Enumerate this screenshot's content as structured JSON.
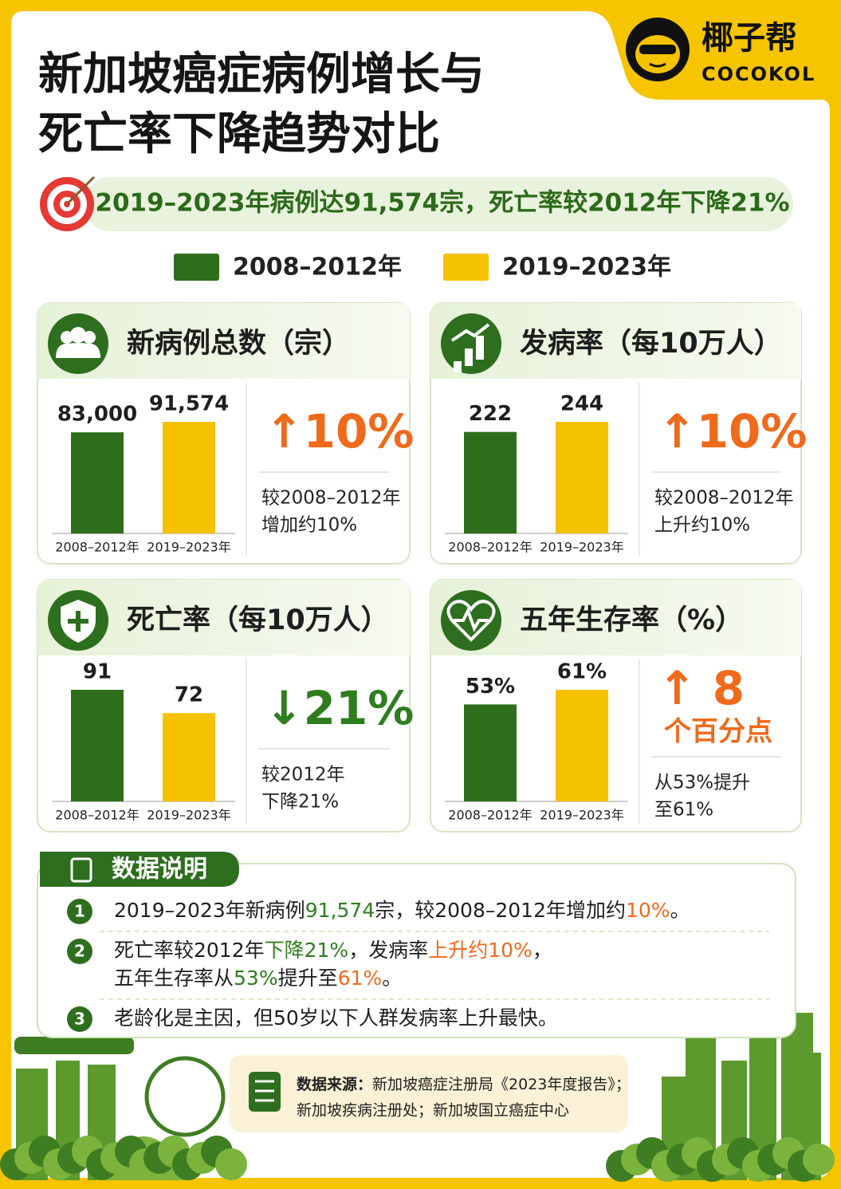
{
  "brand": {
    "name": "椰子帮",
    "name_en": "COCOKOL"
  },
  "title": [
    "新加坡癌症病例增长与",
    "死亡率下降趋势对比"
  ],
  "headline": "2019–2023年病例达91,574宗，死亡率较2012年下降21%",
  "legend": [
    {
      "name": "2008–2012年",
      "color": "#2e6e1b"
    },
    {
      "name": "2019–2023年",
      "color": "#f5c200"
    }
  ],
  "chart_data": [
    {
      "type": "bar",
      "title": "新病例总数（宗）",
      "categories": [
        "2008–2012年",
        "2019–2023年"
      ],
      "values": [
        83000,
        91574
      ],
      "value_labels": [
        "83,000",
        "91,574"
      ],
      "colors": [
        "#2e6e1b",
        "#f5c200"
      ],
      "change": "↑10%",
      "change_color": "#ef6a1a",
      "note": [
        "较2008–2012年",
        "增加约10%"
      ]
    },
    {
      "type": "bar",
      "title": "发病率（每10万人）",
      "categories": [
        "2008–2012年",
        "2019–2023年"
      ],
      "values": [
        222,
        244
      ],
      "colors": [
        "#2e6e1b",
        "#f5c200"
      ],
      "change": "↑10%",
      "change_color": "#ef6a1a",
      "note": [
        "较2008–2012年",
        "上升约10%"
      ]
    },
    {
      "type": "bar",
      "title": "死亡率（每10万人）",
      "categories": [
        "2008–2012年",
        "2019–2023年"
      ],
      "values": [
        91,
        72
      ],
      "colors": [
        "#2e6e1b",
        "#f5c200"
      ],
      "change": "↓21%",
      "change_color": "#2e7d1e",
      "note": [
        "较2012年",
        "下降21%"
      ]
    },
    {
      "type": "bar",
      "title": "五年生存率（%）",
      "categories": [
        "2008–2012年",
        "2019–2023年"
      ],
      "values": [
        53,
        61
      ],
      "value_labels": [
        "53%",
        "61%"
      ],
      "colors": [
        "#2e6e1b",
        "#f5c200"
      ],
      "change": "↑ 8",
      "change_sub": "个百分点",
      "change_color": "#ef6a1a",
      "note": [
        "从53%提升",
        "至61%"
      ]
    }
  ],
  "notes": {
    "title": "数据说明",
    "items": [
      {
        "number": "1",
        "lines": [
          [
            {
              "text": "2019–2023年新病例"
            },
            {
              "text": "91,574",
              "color": "#2e7d1e"
            },
            {
              "text": "宗，较2008–2012年增加约"
            },
            {
              "text": "10%",
              "color": "#ef6a1a"
            },
            {
              "text": "。"
            }
          ]
        ]
      },
      {
        "number": "2",
        "lines": [
          [
            {
              "text": "死亡率较2012年"
            },
            {
              "text": "下降21%",
              "color": "#2e7d1e"
            },
            {
              "text": "，发病率"
            },
            {
              "text": "上升约10%",
              "color": "#ef6a1a"
            },
            {
              "text": "，"
            }
          ],
          [
            {
              "text": "五年生存率从"
            },
            {
              "text": "53%",
              "color": "#2e7d1e"
            },
            {
              "text": "提升至"
            },
            {
              "text": "61%",
              "color": "#ef6a1a"
            },
            {
              "text": "。"
            }
          ]
        ]
      },
      {
        "number": "3",
        "lines": [
          [
            {
              "text": "老龄化是主因，但50岁以下人群发病率上升最快。"
            }
          ]
        ]
      }
    ]
  },
  "source": {
    "label": "数据来源：",
    "lines": [
      "新加坡癌症注册局《2023年度报告》；",
      "新加坡疾病注册处；新加坡国立癌症中心"
    ]
  }
}
